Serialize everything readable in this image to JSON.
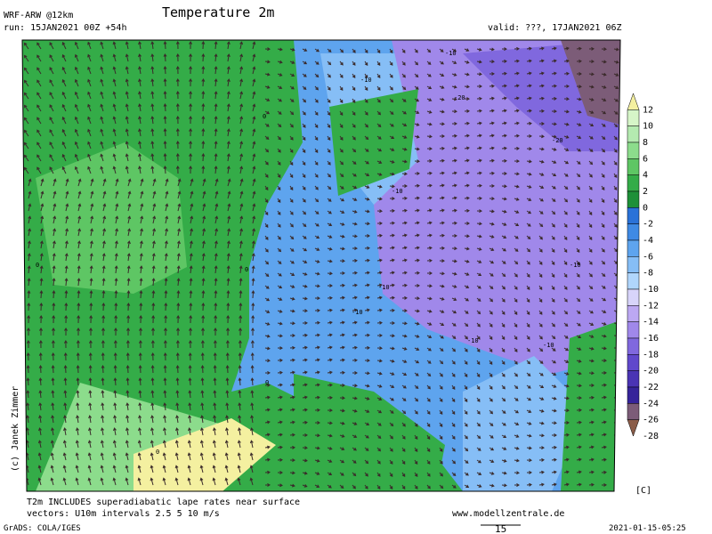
{
  "header": {
    "model": "WRF-ARW @12km",
    "run": "run: 15JAN2021 00Z +54h",
    "title": "Temperature 2m",
    "valid": "valid: ???, 17JAN2021 06Z"
  },
  "colorbar": {
    "unit": "[C]",
    "labels": [
      12,
      10,
      8,
      6,
      4,
      2,
      0,
      -2,
      -4,
      -6,
      -8,
      -10,
      -12,
      -14,
      -16,
      -18,
      -20,
      -22,
      -24,
      -26,
      -28
    ],
    "colors": [
      "#f4f0a0",
      "#d6f5c8",
      "#b4eab0",
      "#8cdc8c",
      "#5ec664",
      "#34ac48",
      "#1e9038",
      "#2a72d8",
      "#3f8ae4",
      "#5ea4ee",
      "#86bef6",
      "#b0d6fc",
      "#d8d4fa",
      "#bca8f2",
      "#a088ea",
      "#8068de",
      "#6048cc",
      "#4a34b4",
      "#36249a",
      "#7c5c78",
      "#8a5c48"
    ]
  },
  "map_labels": [
    "-10",
    "-10",
    "-20",
    "-20",
    "-10",
    "-10",
    "-10",
    "-10",
    "0",
    "0",
    "0",
    "-10",
    "-10",
    "0",
    "0"
  ],
  "footer": {
    "note": "T2m INCLUDES superadiabatic lape rates near surface",
    "vectors": "vectors: U10m intervals 2.5 5 10 m/s",
    "site": "www.modellzentrale.de",
    "grads": "GrADS: COLA/IGES",
    "scale": "15",
    "timestamp": "2021-01-15-05:25",
    "credit": "(c) Janek Zimmer"
  }
}
